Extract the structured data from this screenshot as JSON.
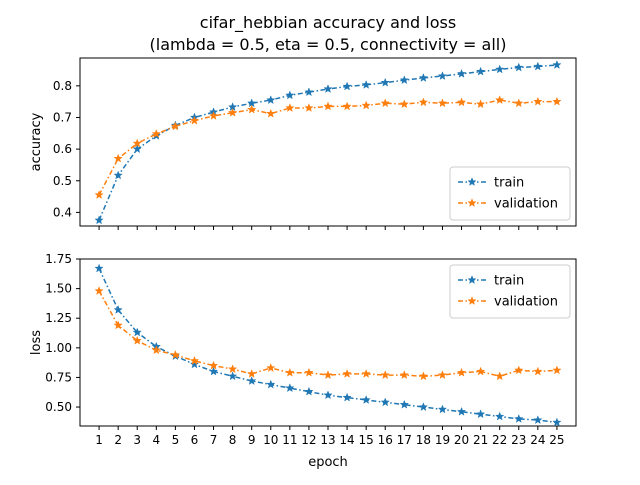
{
  "title_line1": "cifar_hebbian accuracy and loss",
  "title_line2": "(lambda = 0.5, eta = 0.5, connectivity = all)",
  "colors": {
    "train": "#1f77b4",
    "validation": "#ff7f0e"
  },
  "chart_data": [
    {
      "type": "line",
      "ylabel": "accuracy",
      "xlabel": "",
      "x": [
        1,
        2,
        3,
        4,
        5,
        6,
        7,
        8,
        9,
        10,
        11,
        12,
        13,
        14,
        15,
        16,
        17,
        18,
        19,
        20,
        21,
        22,
        23,
        24,
        25
      ],
      "ylim": [
        0.357,
        0.888
      ],
      "yticks": [
        0.4,
        0.5,
        0.6,
        0.7,
        0.8
      ],
      "ytick_labels": [
        "0.4",
        "0.5",
        "0.6",
        "0.7",
        "0.8"
      ],
      "legend": "lower-right",
      "series": [
        {
          "name": "train",
          "values": [
            0.375,
            0.517,
            0.6,
            0.642,
            0.675,
            0.7,
            0.717,
            0.733,
            0.745,
            0.755,
            0.77,
            0.78,
            0.79,
            0.798,
            0.803,
            0.81,
            0.818,
            0.825,
            0.831,
            0.838,
            0.845,
            0.852,
            0.858,
            0.861,
            0.866
          ]
        },
        {
          "name": "validation",
          "values": [
            0.455,
            0.57,
            0.618,
            0.648,
            0.672,
            0.69,
            0.705,
            0.715,
            0.725,
            0.712,
            0.73,
            0.73,
            0.735,
            0.735,
            0.738,
            0.745,
            0.742,
            0.748,
            0.745,
            0.748,
            0.742,
            0.755,
            0.745,
            0.75,
            0.75
          ]
        }
      ]
    },
    {
      "type": "line",
      "ylabel": "loss",
      "xlabel": "epoch",
      "x": [
        1,
        2,
        3,
        4,
        5,
        6,
        7,
        8,
        9,
        10,
        11,
        12,
        13,
        14,
        15,
        16,
        17,
        18,
        19,
        20,
        21,
        22,
        23,
        24,
        25
      ],
      "ylim": [
        0.34,
        1.75
      ],
      "yticks": [
        0.5,
        0.75,
        1.0,
        1.25,
        1.5,
        1.75
      ],
      "ytick_labels": [
        "0.50",
        "0.75",
        "1.00",
        "1.25",
        "1.50",
        "1.75"
      ],
      "xtick_labels": [
        "1",
        "2",
        "3",
        "4",
        "5",
        "6",
        "7",
        "8",
        "9",
        "10",
        "11",
        "12",
        "13",
        "14",
        "15",
        "16",
        "17",
        "18",
        "19",
        "20",
        "21",
        "22",
        "23",
        "24",
        "25"
      ],
      "legend": "upper-right",
      "series": [
        {
          "name": "train",
          "values": [
            1.67,
            1.32,
            1.13,
            1.01,
            0.93,
            0.86,
            0.8,
            0.76,
            0.72,
            0.69,
            0.66,
            0.63,
            0.6,
            0.58,
            0.56,
            0.54,
            0.52,
            0.5,
            0.48,
            0.46,
            0.44,
            0.42,
            0.4,
            0.39,
            0.37
          ]
        },
        {
          "name": "validation",
          "values": [
            1.48,
            1.19,
            1.06,
            0.98,
            0.94,
            0.89,
            0.85,
            0.82,
            0.78,
            0.83,
            0.79,
            0.79,
            0.77,
            0.78,
            0.78,
            0.77,
            0.77,
            0.76,
            0.77,
            0.79,
            0.8,
            0.76,
            0.81,
            0.8,
            0.81
          ]
        }
      ]
    }
  ]
}
